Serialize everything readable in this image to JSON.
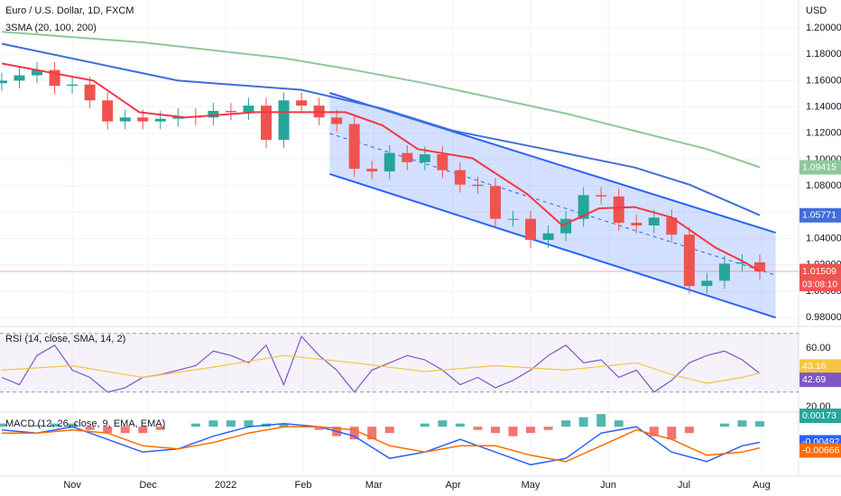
{
  "chart_data": [
    {
      "type": "candlestick",
      "title": "Euro / U.S. Dollar, 1D, FXCM",
      "subtitle": "3SMA (20, 100, 200)",
      "axis_label": "USD",
      "up_color": "#26a69a",
      "down_color": "#ef5350",
      "open": [
        1.158,
        1.16,
        1.164,
        1.168,
        1.156,
        1.157,
        1.145,
        1.129,
        1.132,
        1.129,
        1.131,
        1.133,
        1.132,
        1.137,
        1.136,
        1.141,
        1.115,
        1.145,
        1.141,
        1.132,
        1.127,
        1.093,
        1.091,
        1.105,
        1.098,
        1.104,
        1.092,
        1.081,
        1.08,
        1.055,
        1.055,
        1.039,
        1.044,
        1.055,
        1.073,
        1.072,
        1.052,
        1.05,
        1.056,
        1.043,
        1.004,
        1.008,
        1.021,
        1.022
      ],
      "high": [
        1.166,
        1.17,
        1.174,
        1.174,
        1.163,
        1.163,
        1.151,
        1.138,
        1.138,
        1.137,
        1.139,
        1.139,
        1.143,
        1.143,
        1.147,
        1.147,
        1.151,
        1.151,
        1.147,
        1.138,
        1.133,
        1.099,
        1.111,
        1.111,
        1.11,
        1.11,
        1.098,
        1.087,
        1.086,
        1.061,
        1.061,
        1.05,
        1.061,
        1.079,
        1.079,
        1.078,
        1.058,
        1.062,
        1.062,
        1.049,
        1.014,
        1.027,
        1.028,
        1.028
      ],
      "low": [
        1.152,
        1.154,
        1.158,
        1.15,
        1.15,
        1.139,
        1.123,
        1.123,
        1.123,
        1.123,
        1.125,
        1.126,
        1.126,
        1.13,
        1.13,
        1.109,
        1.109,
        1.135,
        1.126,
        1.121,
        1.087,
        1.085,
        1.085,
        1.092,
        1.092,
        1.086,
        1.075,
        1.074,
        1.049,
        1.049,
        1.033,
        1.033,
        1.038,
        1.049,
        1.066,
        1.046,
        1.044,
        1.044,
        1.037,
        0.998,
        0.998,
        1.002,
        1.015,
        1.009
      ],
      "close": [
        1.16,
        1.164,
        1.168,
        1.156,
        1.157,
        1.145,
        1.129,
        1.132,
        1.129,
        1.131,
        1.133,
        1.132,
        1.137,
        1.136,
        1.141,
        1.115,
        1.145,
        1.141,
        1.132,
        1.127,
        1.093,
        1.091,
        1.105,
        1.098,
        1.104,
        1.092,
        1.081,
        1.08,
        1.055,
        1.055,
        1.039,
        1.044,
        1.055,
        1.073,
        1.072,
        1.052,
        1.05,
        1.056,
        1.043,
        1.004,
        1.008,
        1.021,
        1.022,
        1.01509
      ],
      "countdown": "03:08:10",
      "series": [
        {
          "color": "#f23645",
          "x": [
            0,
            5.2,
            7.8,
            10.4,
            14.4,
            17,
            19.5,
            21.6,
            23.6,
            26.7,
            29.8,
            31.8,
            33.9,
            35.9,
            38,
            40.5,
            42,
            43
          ],
          "values": [
            1.173,
            1.16,
            1.136,
            1.132,
            1.136,
            1.136,
            1.136,
            1.126,
            1.108,
            1.101,
            1.074,
            1.05,
            1.063,
            1.064,
            1.056,
            1.033,
            1.023,
            1.01538
          ]
        },
        {
          "color": "#3f6fd8",
          "x": [
            0,
            10,
            17,
            21.5,
            25.6,
            30.8,
            35.9,
            39,
            43
          ],
          "values": [
            1.188,
            1.16,
            1.153,
            1.139,
            1.122,
            1.108,
            1.094,
            1.081,
            1.05771
          ]
        },
        {
          "color": "#8cc99a",
          "x": [
            0,
            8,
            16,
            20,
            24,
            32,
            40,
            43
          ],
          "values": [
            1.197,
            1.189,
            1.177,
            1.168,
            1.158,
            1.135,
            1.108,
            1.09415
          ]
        }
      ],
      "channel": {
        "color": "#2962ff",
        "x": [
          18.6,
          43.9
        ],
        "upper": [
          1.1507,
          1.0445
        ],
        "lower": [
          1.0891,
          0.98
        ]
      },
      "xlim": [
        -0.1,
        45.2
      ],
      "xticks": [
        {
          "value": 4,
          "label": "Nov"
        },
        {
          "value": 8.3,
          "label": "Dec"
        },
        {
          "value": 12.7,
          "label": "2022"
        },
        {
          "value": 17.1,
          "label": "Feb"
        },
        {
          "value": 21.1,
          "label": "Mar"
        },
        {
          "value": 25.6,
          "label": "Apr"
        },
        {
          "value": 30,
          "label": "May"
        },
        {
          "value": 34.4,
          "label": "Jun"
        },
        {
          "value": 38.7,
          "label": "Jul"
        },
        {
          "value": 43.1,
          "label": "Aug"
        }
      ],
      "ylim": [
        0.9733,
        1.2212
      ],
      "yticks": [
        {
          "value": 1.2,
          "label": "1.20000"
        },
        {
          "value": 1.18,
          "label": "1.18000"
        },
        {
          "value": 1.16,
          "label": "1.16000"
        },
        {
          "value": 1.14,
          "label": "1.14000"
        },
        {
          "value": 1.12,
          "label": "1.12000"
        },
        {
          "value": 1.1,
          "label": "1.10000"
        },
        {
          "value": 1.08,
          "label": "1.08000"
        },
        {
          "value": 1.06,
          "label": "1.06000"
        },
        {
          "value": 1.04,
          "label": "1.04000"
        },
        {
          "value": 1.02,
          "label": "1.02000"
        },
        {
          "value": 1.0,
          "label": "1.00000"
        },
        {
          "value": 0.98,
          "label": "0.98000"
        }
      ]
    },
    {
      "type": "line",
      "title": "RSI (14, close, SMA, 14, 2)",
      "band": [
        30,
        70
      ],
      "series": [
        {
          "color": "#7e57c2",
          "values": [
            40,
            35,
            55,
            62,
            45,
            40,
            30,
            33,
            40,
            42,
            45,
            48,
            58,
            55,
            50,
            62,
            35,
            68,
            55,
            45,
            30,
            45,
            50,
            55,
            52,
            45,
            35,
            40,
            33,
            38,
            45,
            55,
            62,
            50,
            52,
            40,
            45,
            30,
            38,
            50,
            55,
            58,
            52,
            42.69
          ]
        },
        {
          "color": "#f5c542",
          "x": [
            0,
            4,
            8,
            12,
            16,
            20,
            24,
            28,
            32,
            36,
            38,
            40,
            42,
            43
          ],
          "values": [
            45,
            48,
            40,
            47,
            55,
            50,
            44,
            48,
            45,
            50,
            42,
            36,
            40,
            43.16
          ]
        }
      ],
      "ylim": [
        16.3,
        74.8
      ],
      "yticks": [
        {
          "value": 60,
          "label": "60.00"
        },
        {
          "value": 20,
          "label": "20.00"
        }
      ]
    },
    {
      "type": "macd",
      "title": "MACD (12, 26, close, 9, EMA, EMA)",
      "histogram": {
        "pos_color": "#26a69a",
        "neg_color": "#ef5350",
        "values": [
          0.001,
          0.0,
          0.0005,
          0.001,
          0.001,
          -0.001,
          -0.002,
          -0.002,
          -0.002,
          -0.001,
          0.0,
          0.001,
          0.002,
          0.002,
          0.002,
          0.001,
          0.001,
          0.0,
          -0.001,
          -0.003,
          -0.004,
          -0.004,
          -0.002,
          0.0,
          0.001,
          0.002,
          0.001,
          -0.001,
          -0.002,
          -0.003,
          -0.002,
          -0.001,
          0.002,
          0.003,
          0.004,
          0.002,
          0.0,
          -0.003,
          -0.004,
          -0.002,
          0.0,
          0.001,
          0.002,
          0.00173
        ]
      },
      "series": [
        {
          "color": "#2962ff",
          "x": [
            0,
            2,
            4,
            6,
            8,
            10,
            12,
            14,
            16,
            18,
            20,
            22,
            24,
            26,
            28,
            30,
            32,
            34,
            36,
            38,
            40,
            42,
            43
          ],
          "values": [
            -0.001,
            -0.002,
            0.0,
            -0.004,
            -0.008,
            -0.007,
            -0.003,
            0.0,
            0.001,
            0.0,
            -0.003,
            -0.01,
            -0.008,
            -0.004,
            -0.008,
            -0.012,
            -0.01,
            -0.002,
            0.0,
            -0.008,
            -0.011,
            -0.006,
            -0.00492
          ]
        },
        {
          "color": "#ff6d00",
          "x": [
            0,
            2,
            4,
            6,
            8,
            10,
            12,
            14,
            16,
            18,
            20,
            22,
            24,
            26,
            28,
            30,
            32,
            34,
            36,
            38,
            40,
            42,
            43
          ],
          "values": [
            -0.002,
            -0.002,
            -0.001,
            -0.002,
            -0.006,
            -0.007,
            -0.005,
            -0.002,
            0.0,
            0.0,
            -0.001,
            -0.006,
            -0.008,
            -0.006,
            -0.006,
            -0.009,
            -0.011,
            -0.006,
            -0.001,
            -0.004,
            -0.009,
            -0.008,
            -0.00666
          ]
        }
      ],
      "ylim": [
        -0.0156,
        0.0046
      ]
    }
  ]
}
